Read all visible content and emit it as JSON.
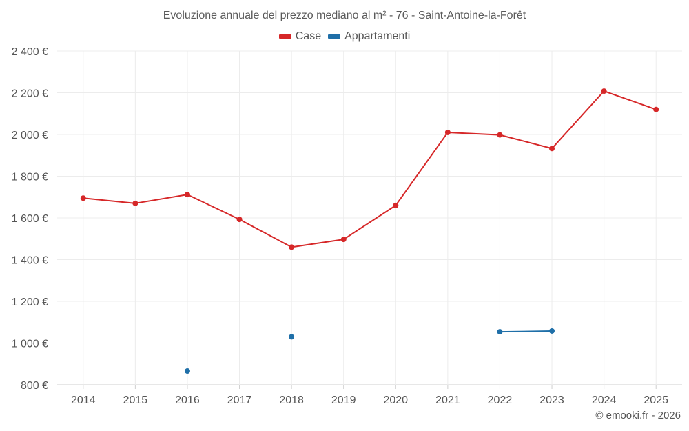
{
  "chart_data": {
    "type": "line",
    "title": "Evoluzione annuale del prezzo mediano al m² - 76 - Saint-Antoine-la-Forêt",
    "xlabel": "",
    "ylabel": "",
    "x": [
      "2014",
      "2015",
      "2016",
      "2017",
      "2018",
      "2019",
      "2020",
      "2021",
      "2022",
      "2023",
      "2024",
      "2025"
    ],
    "ylim": [
      800,
      2400
    ],
    "yticks": [
      800,
      1000,
      1200,
      1400,
      1600,
      1800,
      2000,
      2200,
      2400
    ],
    "ytick_labels": [
      "800 €",
      "1 000 €",
      "1 200 €",
      "1 400 €",
      "1 600 €",
      "1 800 €",
      "2 000 €",
      "2 200 €",
      "2 400 €"
    ],
    "grid": true,
    "legend_position": "top-center",
    "series": [
      {
        "name": "Case",
        "color": "#d62728",
        "values": [
          1695,
          1670,
          1712,
          1593,
          1460,
          1497,
          1660,
          2010,
          1998,
          1933,
          2208,
          2120
        ]
      },
      {
        "name": "Appartamenti",
        "color": "#1f6fa8",
        "values": [
          null,
          null,
          866,
          null,
          1030,
          null,
          null,
          null,
          1054,
          1058,
          null,
          null
        ]
      }
    ]
  },
  "credit": "© emooki.fr - 2026"
}
